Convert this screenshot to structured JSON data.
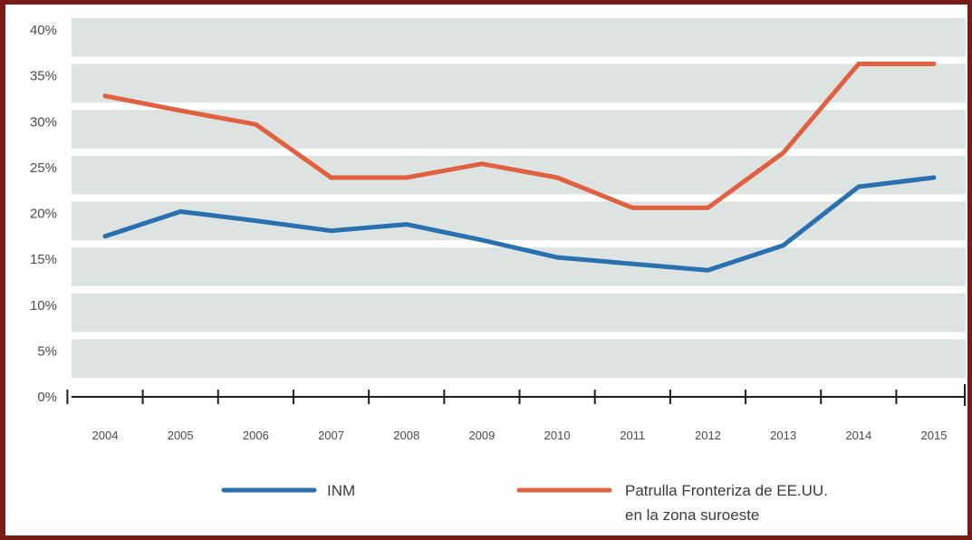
{
  "chart_data": {
    "type": "line",
    "x": [
      "2004",
      "2005",
      "2006",
      "2007",
      "2008",
      "2009",
      "2010",
      "2011",
      "2012",
      "2013",
      "2014",
      "2015"
    ],
    "ylim": [
      0,
      40
    ],
    "yticks": [
      "0%",
      "5%",
      "10%",
      "15%",
      "20%",
      "25%",
      "30%",
      "35%",
      "40%"
    ],
    "grid": "horizontal gray bands",
    "legend_position": "bottom",
    "series": [
      {
        "name": "INM",
        "color": "#2a6fb0",
        "values": [
          17.5,
          20.2,
          19.2,
          18.1,
          18.8,
          17.1,
          15.2,
          14.5,
          13.8,
          16.5,
          22.9,
          23.9
        ]
      },
      {
        "name": "Patrulla Fronteriza de EE.UU.\nen la zona suroeste",
        "color": "#e06040",
        "values": [
          32.8,
          31.2,
          29.7,
          23.9,
          23.9,
          25.4,
          23.9,
          20.6,
          20.6,
          26.6,
          36.3,
          36.3
        ]
      }
    ]
  }
}
